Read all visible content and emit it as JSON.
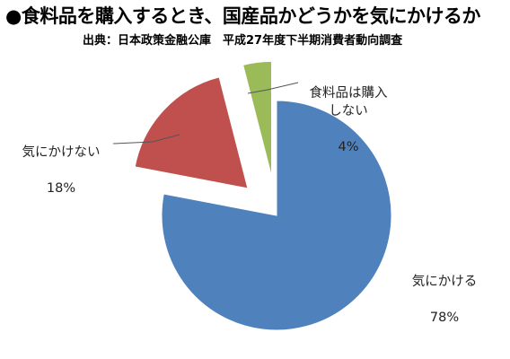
{
  "title": "●食料品を購入するとき、国産品かどうかを気にかけるか",
  "source": "出典：日本政策金融公庫　平成27年度下半期消費者動向調査",
  "chart_data": {
    "type": "pie",
    "slices": [
      {
        "label": "気にかける",
        "value": 78,
        "value_label": "78%",
        "color": "#4f81bd",
        "exploded": false
      },
      {
        "label": "気にかけない",
        "value": 18,
        "value_label": "18%",
        "color": "#c0504d",
        "exploded": true
      },
      {
        "label": "食料品は購入\nしない",
        "value": 4,
        "value_label": "4%",
        "color": "#9bbb59",
        "exploded": true
      }
    ],
    "start_angle_deg": 0,
    "direction": "clockwise",
    "legend": "none"
  }
}
